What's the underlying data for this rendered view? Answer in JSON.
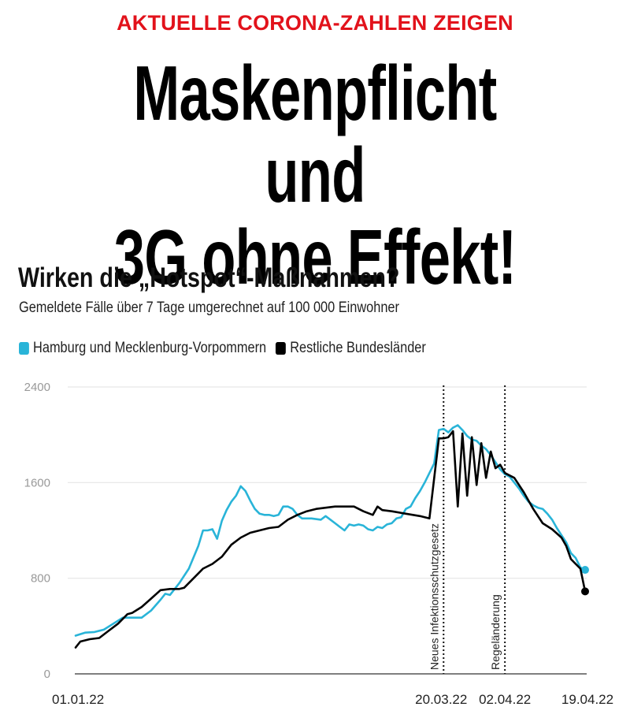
{
  "article": {
    "kicker": "AKTUELLE CORONA-ZAHLEN ZEIGEN",
    "headline_line1": "Maskenpflicht und",
    "headline_line2": "3G ohne Effekt!",
    "colors": {
      "kicker": "#e2121b",
      "headline": "#000000"
    }
  },
  "chart_data": {
    "type": "line",
    "title": "Wirken die „Hotspot“-Maßnahmen?",
    "subtitle": "Gemeldete Fälle über 7 Tage umgerechnet auf 100 000 Einwohner",
    "xlabel": "",
    "ylabel": "",
    "ylim": [
      0,
      2400
    ],
    "yticks": [
      0,
      800,
      1600,
      2400
    ],
    "ytick_labels": [
      "0",
      "800",
      "1600",
      "2400"
    ],
    "xrange_days": [
      0,
      108
    ],
    "xticks": [
      {
        "day": 0,
        "label": "01.01.22"
      },
      {
        "day": 78,
        "label": "20.03.22"
      },
      {
        "day": 91,
        "label": "02.04.22"
      },
      {
        "day": 108,
        "label": "19.04.22"
      }
    ],
    "grid": true,
    "legend_position": "top-left",
    "annotations": [
      {
        "day": 78,
        "label": "Neues Infektionsschutzgesetz",
        "style": "dotted-vertical-line"
      },
      {
        "day": 91,
        "label": "Regeländerung",
        "style": "dotted-vertical-line"
      }
    ],
    "series": [
      {
        "name": "Hamburg und Mecklenburg-Vorpommern",
        "color": "#29b4d8",
        "points": [
          [
            0,
            320
          ],
          [
            2,
            345
          ],
          [
            4,
            350
          ],
          [
            6,
            370
          ],
          [
            8,
            420
          ],
          [
            10,
            470
          ],
          [
            12,
            470
          ],
          [
            14,
            470
          ],
          [
            16,
            530
          ],
          [
            18,
            620
          ],
          [
            19,
            670
          ],
          [
            20,
            660
          ],
          [
            22,
            760
          ],
          [
            24,
            880
          ],
          [
            26,
            1070
          ],
          [
            27,
            1200
          ],
          [
            28,
            1200
          ],
          [
            29,
            1210
          ],
          [
            30,
            1130
          ],
          [
            31,
            1280
          ],
          [
            32,
            1370
          ],
          [
            33,
            1440
          ],
          [
            34,
            1490
          ],
          [
            35,
            1570
          ],
          [
            36,
            1530
          ],
          [
            37,
            1450
          ],
          [
            38,
            1380
          ],
          [
            39,
            1340
          ],
          [
            40,
            1330
          ],
          [
            41,
            1330
          ],
          [
            42,
            1320
          ],
          [
            43,
            1330
          ],
          [
            44,
            1400
          ],
          [
            45,
            1400
          ],
          [
            46,
            1380
          ],
          [
            47,
            1330
          ],
          [
            48,
            1300
          ],
          [
            50,
            1300
          ],
          [
            52,
            1290
          ],
          [
            53,
            1320
          ],
          [
            55,
            1260
          ],
          [
            56,
            1230
          ],
          [
            57,
            1200
          ],
          [
            58,
            1250
          ],
          [
            59,
            1240
          ],
          [
            60,
            1250
          ],
          [
            61,
            1240
          ],
          [
            62,
            1210
          ],
          [
            63,
            1200
          ],
          [
            64,
            1230
          ],
          [
            65,
            1220
          ],
          [
            66,
            1250
          ],
          [
            67,
            1260
          ],
          [
            68,
            1300
          ],
          [
            69,
            1310
          ],
          [
            70,
            1380
          ],
          [
            71,
            1400
          ],
          [
            72,
            1470
          ],
          [
            73,
            1530
          ],
          [
            74,
            1600
          ],
          [
            75,
            1680
          ],
          [
            76,
            1760
          ],
          [
            77,
            2040
          ],
          [
            78,
            2050
          ],
          [
            79,
            2020
          ],
          [
            80,
            2060
          ],
          [
            81,
            2080
          ],
          [
            82,
            2040
          ],
          [
            83,
            1990
          ],
          [
            84,
            1960
          ],
          [
            85,
            1950
          ],
          [
            86,
            1910
          ],
          [
            87,
            1880
          ],
          [
            88,
            1830
          ],
          [
            89,
            1770
          ],
          [
            90,
            1710
          ],
          [
            91,
            1670
          ],
          [
            92,
            1650
          ],
          [
            93,
            1600
          ],
          [
            94,
            1550
          ],
          [
            95,
            1490
          ],
          [
            96,
            1440
          ],
          [
            97,
            1410
          ],
          [
            98,
            1390
          ],
          [
            99,
            1380
          ],
          [
            100,
            1340
          ],
          [
            101,
            1290
          ],
          [
            102,
            1220
          ],
          [
            103,
            1160
          ],
          [
            104,
            1100
          ],
          [
            105,
            1010
          ],
          [
            106,
            970
          ],
          [
            107,
            890
          ],
          [
            108,
            870
          ]
        ]
      },
      {
        "name": "Restliche Bundesländer",
        "color": "#000000",
        "points": [
          [
            0,
            220
          ],
          [
            1,
            270
          ],
          [
            3,
            290
          ],
          [
            5,
            300
          ],
          [
            7,
            360
          ],
          [
            9,
            420
          ],
          [
            11,
            500
          ],
          [
            12,
            510
          ],
          [
            14,
            560
          ],
          [
            16,
            630
          ],
          [
            18,
            700
          ],
          [
            20,
            710
          ],
          [
            22,
            710
          ],
          [
            23,
            720
          ],
          [
            25,
            800
          ],
          [
            27,
            880
          ],
          [
            29,
            920
          ],
          [
            31,
            980
          ],
          [
            33,
            1080
          ],
          [
            35,
            1140
          ],
          [
            37,
            1180
          ],
          [
            39,
            1200
          ],
          [
            41,
            1220
          ],
          [
            43,
            1230
          ],
          [
            45,
            1290
          ],
          [
            47,
            1330
          ],
          [
            49,
            1360
          ],
          [
            51,
            1380
          ],
          [
            53,
            1390
          ],
          [
            55,
            1400
          ],
          [
            57,
            1400
          ],
          [
            59,
            1400
          ],
          [
            61,
            1360
          ],
          [
            63,
            1330
          ],
          [
            64,
            1400
          ],
          [
            65,
            1370
          ],
          [
            67,
            1360
          ],
          [
            70,
            1340
          ],
          [
            73,
            1320
          ],
          [
            75,
            1300
          ],
          [
            77,
            1300
          ],
          [
            79,
            1330
          ],
          [
            81,
            1400
          ],
          [
            83,
            1490
          ],
          [
            85,
            1580
          ],
          [
            87,
            1640
          ],
          [
            89,
            1720
          ],
          [
            91,
            1800
          ],
          [
            93,
            1900
          ],
          [
            95,
            1970
          ],
          [
            77,
            1970
          ],
          [
            78,
            1970
          ],
          [
            79,
            1980
          ],
          [
            80,
            2030
          ],
          [
            82,
            2010
          ],
          [
            84,
            1980
          ],
          [
            86,
            1930
          ],
          [
            88,
            1860
          ],
          [
            90,
            1750
          ],
          [
            91,
            1680
          ],
          [
            93,
            1640
          ],
          [
            95,
            1520
          ],
          [
            97,
            1380
          ],
          [
            99,
            1260
          ],
          [
            101,
            1210
          ],
          [
            103,
            1140
          ],
          [
            104,
            1070
          ],
          [
            105,
            960
          ],
          [
            106,
            920
          ],
          [
            107,
            880
          ],
          [
            108,
            690
          ]
        ]
      }
    ]
  }
}
